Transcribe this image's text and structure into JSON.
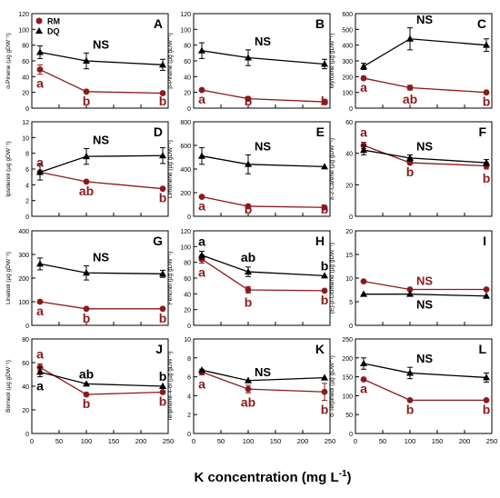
{
  "figure": {
    "x_axis_title_main": "K concentration (mg L",
    "x_axis_title_sup": "-1",
    "x_axis_title_tail": ")",
    "colors": {
      "RM": "#8B1A1A",
      "DQ": "#000000"
    }
  },
  "chart_data": [
    {
      "type": "line",
      "panel_letter": "A",
      "ylabel": "α-Pinene (µg gDW⁻¹)",
      "ylim": [
        0,
        120
      ],
      "yticks": [
        0,
        20,
        40,
        60,
        80,
        100,
        120
      ],
      "xlim": [
        0,
        250
      ],
      "xticks": [
        0,
        50,
        100,
        150,
        200,
        250
      ],
      "show_xtick_labels": false,
      "x": [
        15,
        100,
        240
      ],
      "legend": [
        {
          "name": "RM",
          "marker": "circle"
        },
        {
          "name": "DQ",
          "marker": "triangle"
        }
      ],
      "series": [
        {
          "name": "RM",
          "values": [
            49,
            21,
            19
          ],
          "errors": [
            6,
            0,
            0
          ],
          "labels": [
            "a",
            "b",
            "b"
          ]
        },
        {
          "name": "DQ",
          "values": [
            71,
            60,
            55
          ],
          "errors": [
            8,
            10,
            7
          ],
          "labels": [
            "",
            "NS",
            ""
          ]
        }
      ]
    },
    {
      "type": "line",
      "panel_letter": "B",
      "ylabel": "β-Pinene (µg gDW⁻¹)",
      "ylim": [
        0,
        120
      ],
      "yticks": [
        0,
        20,
        40,
        60,
        80,
        100,
        120
      ],
      "xlim": [
        0,
        250
      ],
      "xticks": [
        0,
        50,
        100,
        150,
        200,
        250
      ],
      "show_xtick_labels": false,
      "x": [
        15,
        100,
        240
      ],
      "series": [
        {
          "name": "RM",
          "values": [
            23,
            12,
            8
          ],
          "errors": [
            0,
            0,
            0
          ],
          "labels": [
            "a",
            "b",
            "b"
          ]
        },
        {
          "name": "DQ",
          "values": [
            73,
            64,
            56
          ],
          "errors": [
            10,
            10,
            6
          ],
          "labels": [
            "",
            "NS",
            ""
          ]
        }
      ]
    },
    {
      "type": "line",
      "panel_letter": "C",
      "ylabel": "Myrcene (µg gDW⁻¹)",
      "ylim": [
        0,
        600
      ],
      "yticks": [
        0,
        100,
        200,
        300,
        400,
        500,
        600
      ],
      "xlim": [
        0,
        250
      ],
      "xticks": [
        0,
        50,
        100,
        150,
        200,
        250
      ],
      "show_xtick_labels": false,
      "x": [
        15,
        100,
        240
      ],
      "series": [
        {
          "name": "RM",
          "values": [
            190,
            130,
            100
          ],
          "errors": [
            0,
            15,
            0
          ],
          "labels": [
            "a",
            "ab",
            "b"
          ]
        },
        {
          "name": "DQ",
          "values": [
            265,
            440,
            400
          ],
          "errors": [
            20,
            70,
            40
          ],
          "labels": [
            "",
            "NS",
            ""
          ]
        }
      ]
    },
    {
      "type": "line",
      "panel_letter": "D",
      "ylabel": "Ipsdienol (µg gDW⁻¹)",
      "ylim": [
        0,
        12
      ],
      "yticks": [
        0,
        2,
        4,
        6,
        8,
        10,
        12
      ],
      "xlim": [
        0,
        250
      ],
      "xticks": [
        0,
        50,
        100,
        150,
        200,
        250
      ],
      "show_xtick_labels": false,
      "x": [
        15,
        100,
        240
      ],
      "series": [
        {
          "name": "RM",
          "values": [
            5.6,
            4.4,
            3.5
          ],
          "errors": [
            0,
            0,
            0
          ],
          "labels": [
            "a",
            "ab",
            "b"
          ]
        },
        {
          "name": "DQ",
          "values": [
            5.6,
            7.6,
            7.7
          ],
          "errors": [
            1.0,
            1.0,
            1.0
          ],
          "labels": [
            "",
            "NS",
            ""
          ]
        }
      ]
    },
    {
      "type": "line",
      "panel_letter": "E",
      "ylabel": "Limonene (µg gDW⁻¹)",
      "ylim": [
        0,
        800
      ],
      "yticks": [
        0,
        200,
        400,
        600,
        800
      ],
      "xlim": [
        0,
        250
      ],
      "xticks": [
        0,
        50,
        100,
        150,
        200,
        250
      ],
      "show_xtick_labels": false,
      "x": [
        15,
        100,
        240
      ],
      "series": [
        {
          "name": "RM",
          "values": [
            165,
            85,
            75
          ],
          "errors": [
            0,
            0,
            0
          ],
          "labels": [
            "a",
            "b",
            "b"
          ]
        },
        {
          "name": "DQ",
          "values": [
            510,
            440,
            420
          ],
          "errors": [
            70,
            80,
            0
          ],
          "labels": [
            "",
            "NS",
            ""
          ]
        }
      ]
    },
    {
      "type": "line",
      "panel_letter": "F",
      "ylabel": "δ-2-Carene (µg gDW⁻¹)",
      "ylim": [
        0,
        60
      ],
      "yticks": [
        0,
        20,
        40,
        60
      ],
      "xlim": [
        0,
        250
      ],
      "xticks": [
        0,
        50,
        100,
        150,
        200,
        250
      ],
      "show_xtick_labels": false,
      "x": [
        15,
        100,
        240
      ],
      "series": [
        {
          "name": "RM",
          "values": [
            45,
            34,
            32
          ],
          "errors": [
            2,
            0,
            2
          ],
          "labels": [
            "a",
            "b",
            "b"
          ]
        },
        {
          "name": "DQ",
          "values": [
            42,
            37,
            34
          ],
          "errors": [
            3,
            2,
            2
          ],
          "labels": [
            "",
            "NS",
            ""
          ]
        }
      ]
    },
    {
      "type": "line",
      "panel_letter": "G",
      "ylabel": "Linalool (µg gDW⁻¹)",
      "ylim": [
        0,
        400
      ],
      "yticks": [
        0,
        100,
        200,
        300,
        400
      ],
      "xlim": [
        0,
        250
      ],
      "xticks": [
        0,
        50,
        100,
        150,
        200,
        250
      ],
      "show_xtick_labels": false,
      "x": [
        15,
        100,
        240
      ],
      "series": [
        {
          "name": "RM",
          "values": [
            100,
            70,
            70
          ],
          "errors": [
            0,
            0,
            0
          ],
          "labels": [
            "a",
            "b",
            "b"
          ]
        },
        {
          "name": "DQ",
          "values": [
            260,
            222,
            218
          ],
          "errors": [
            25,
            30,
            15
          ],
          "labels": [
            "",
            "NS",
            ""
          ]
        }
      ]
    },
    {
      "type": "line",
      "panel_letter": "H",
      "ylabel": "Fenchol (µg gDW⁻¹)",
      "ylim": [
        0,
        120
      ],
      "yticks": [
        0,
        20,
        40,
        60,
        80,
        100,
        120
      ],
      "xlim": [
        0,
        250
      ],
      "xticks": [
        0,
        50,
        100,
        150,
        200,
        250
      ],
      "show_xtick_labels": false,
      "x": [
        15,
        100,
        240
      ],
      "series": [
        {
          "name": "RM",
          "values": [
            84,
            45,
            44
          ],
          "errors": [
            5,
            4,
            0
          ],
          "labels": [
            "a",
            "b",
            "b"
          ]
        },
        {
          "name": "DQ",
          "values": [
            89,
            68,
            63
          ],
          "errors": [
            5,
            6,
            0
          ],
          "labels": [
            "a",
            "ab",
            "b"
          ]
        }
      ]
    },
    {
      "type": "line",
      "panel_letter": "I",
      "ylabel": "(E)-β-Ocimene (µg gDW⁻¹)",
      "ylim": [
        0,
        20
      ],
      "yticks": [
        0,
        5,
        10,
        15,
        20
      ],
      "xlim": [
        0,
        250
      ],
      "xticks": [
        0,
        50,
        100,
        150,
        200,
        250
      ],
      "show_xtick_labels": false,
      "x": [
        15,
        100,
        240
      ],
      "series": [
        {
          "name": "RM",
          "values": [
            9.3,
            7.6,
            7.6
          ],
          "errors": [
            0,
            0,
            0
          ],
          "labels": [
            "",
            "NS",
            ""
          ]
        },
        {
          "name": "DQ",
          "values": [
            6.6,
            6.6,
            6.2
          ],
          "errors": [
            0,
            0,
            0
          ],
          "labels": [
            "",
            "NS",
            ""
          ]
        }
      ]
    },
    {
      "type": "line",
      "panel_letter": "J",
      "ylabel": "Borneol (µg gDW⁻¹)",
      "ylim": [
        0,
        80
      ],
      "yticks": [
        0,
        20,
        40,
        60,
        80
      ],
      "xlim": [
        0,
        250
      ],
      "xticks": [
        0,
        50,
        100,
        150,
        200,
        250
      ],
      "show_xtick_labels": true,
      "x": [
        15,
        100,
        240
      ],
      "series": [
        {
          "name": "RM",
          "values": [
            56,
            33,
            35
          ],
          "errors": [
            3,
            0,
            0
          ],
          "labels": [
            "a",
            "b",
            "b"
          ]
        },
        {
          "name": "DQ",
          "values": [
            52,
            42,
            40
          ],
          "errors": [
            4,
            0,
            0
          ],
          "labels": [
            "a",
            "ab",
            "b"
          ]
        }
      ]
    },
    {
      "type": "line",
      "panel_letter": "K",
      "ylabel": "Terpinene-4-ol (µg gDW⁻¹)",
      "ylim": [
        0,
        10
      ],
      "yticks": [
        0,
        2,
        4,
        6,
        8,
        10
      ],
      "xlim": [
        0,
        250
      ],
      "xticks": [
        0,
        50,
        100,
        150,
        200,
        250
      ],
      "show_xtick_labels": true,
      "x": [
        15,
        100,
        240
      ],
      "series": [
        {
          "name": "RM",
          "values": [
            6.5,
            4.7,
            4.4
          ],
          "errors": [
            0.3,
            0.4,
            0.9
          ],
          "labels": [
            "a",
            "ab",
            "b"
          ]
        },
        {
          "name": "DQ",
          "values": [
            6.7,
            5.6,
            5.9
          ],
          "errors": [
            0,
            0,
            0
          ],
          "labels": [
            "",
            "NS",
            ""
          ]
        }
      ]
    },
    {
      "type": "line",
      "panel_letter": "L",
      "ylabel": "α-Terpineol (µg gDW⁻¹)",
      "ylim": [
        0,
        250
      ],
      "yticks": [
        0,
        50,
        100,
        150,
        200,
        250
      ],
      "xlim": [
        0,
        250
      ],
      "xticks": [
        0,
        50,
        100,
        150,
        200,
        250
      ],
      "show_xtick_labels": true,
      "x": [
        15,
        100,
        240
      ],
      "series": [
        {
          "name": "RM",
          "values": [
            143,
            88,
            88
          ],
          "errors": [
            0,
            0,
            0
          ],
          "labels": [
            "a",
            "b",
            "b"
          ]
        },
        {
          "name": "DQ",
          "values": [
            185,
            160,
            148
          ],
          "errors": [
            15,
            15,
            12
          ],
          "labels": [
            "",
            "NS",
            ""
          ]
        }
      ]
    }
  ]
}
